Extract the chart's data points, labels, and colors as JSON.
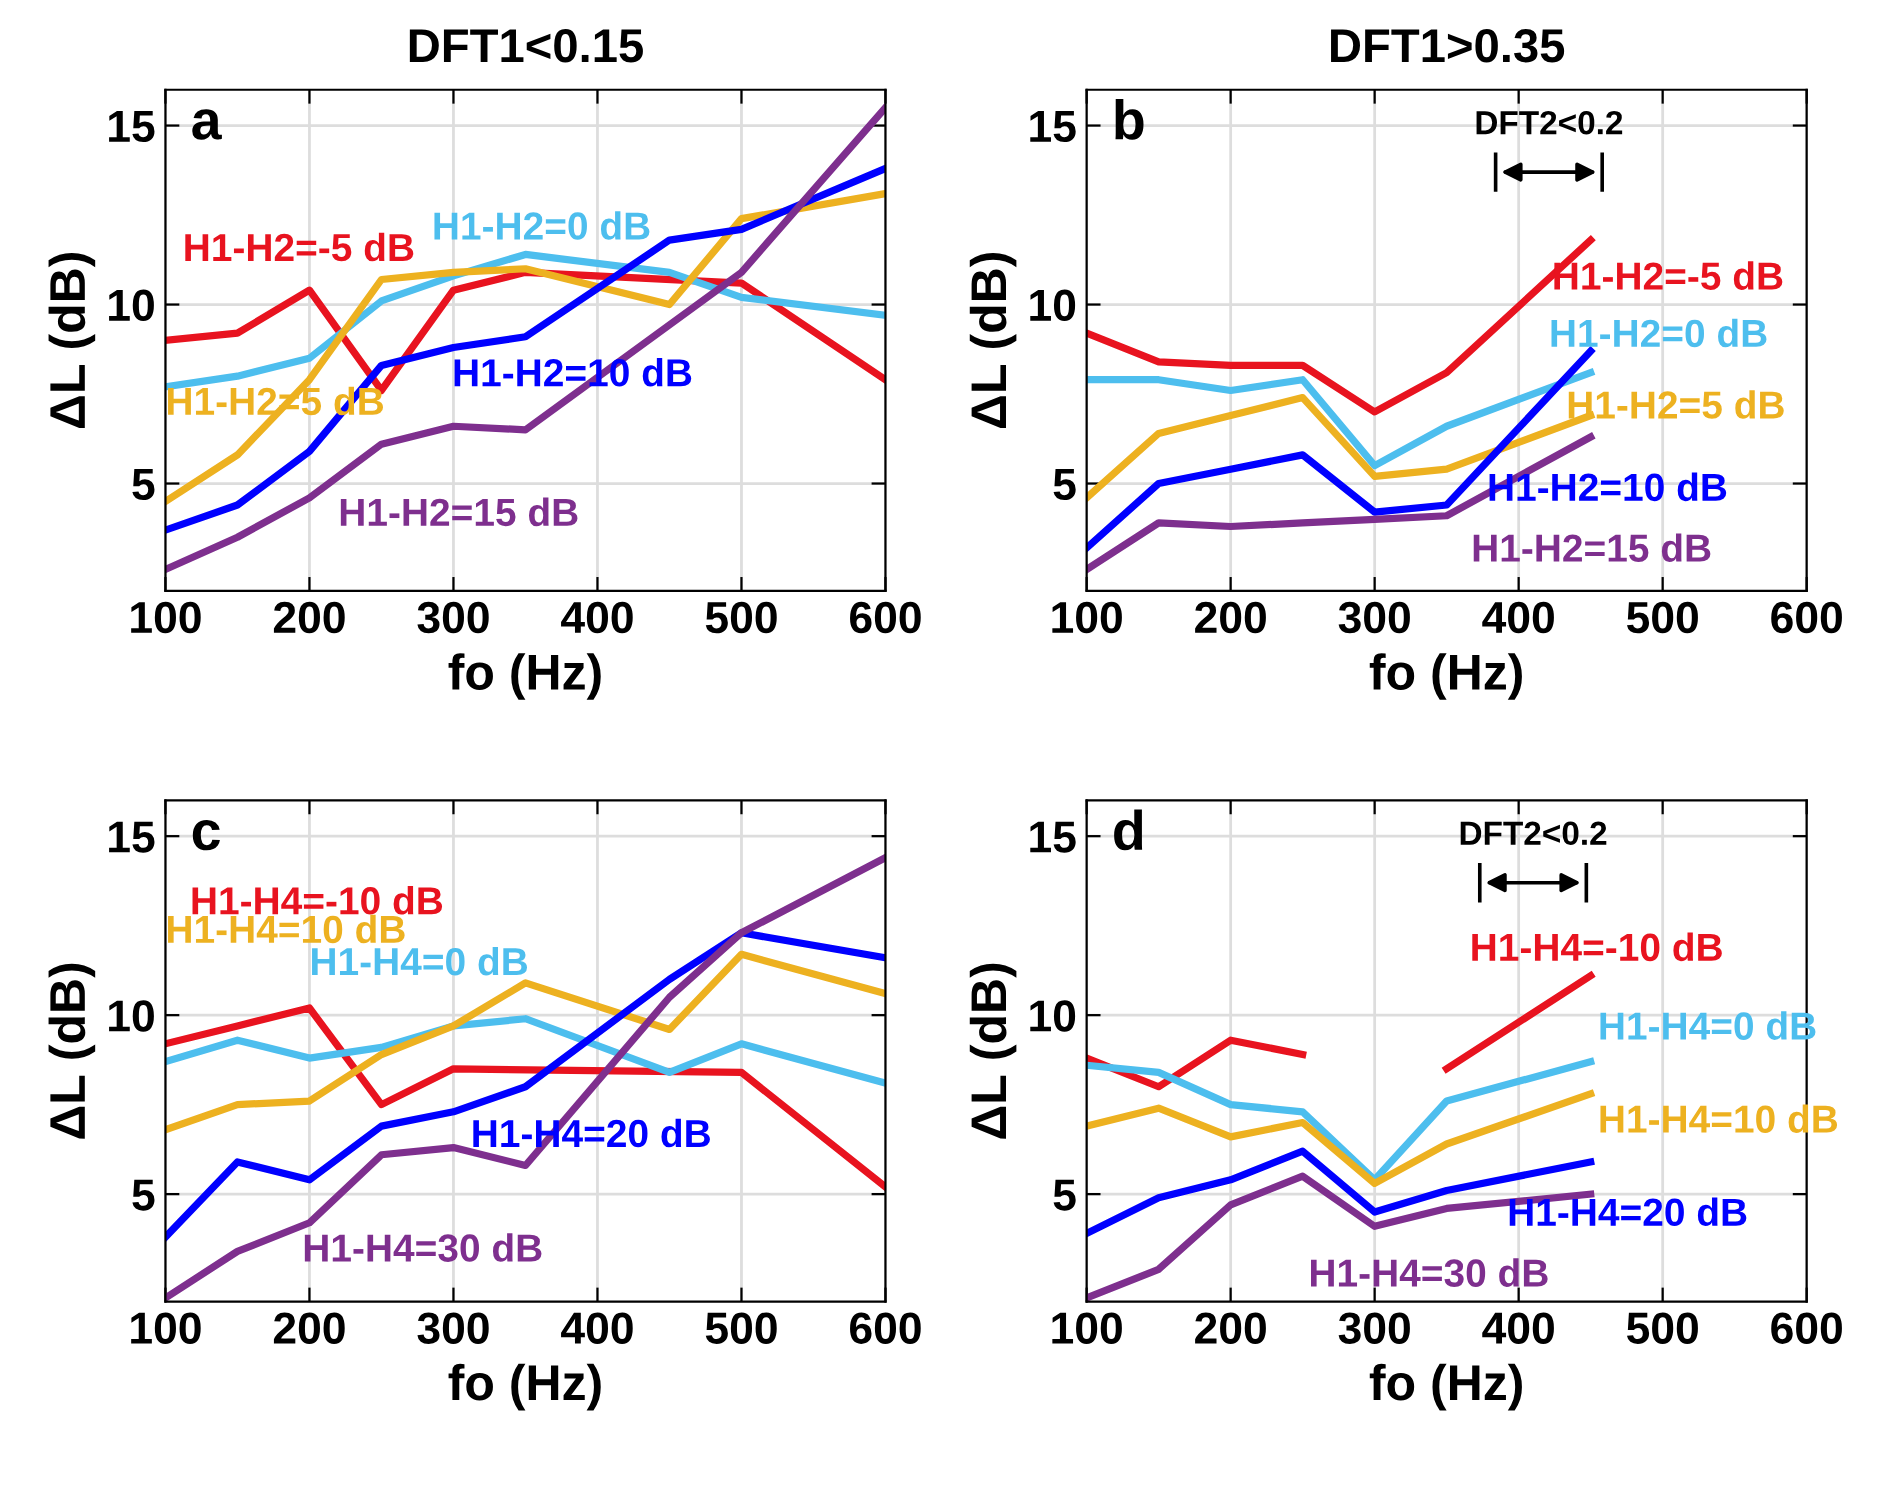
{
  "chart_data": [
    {
      "type": "line",
      "title": "DFT1<0.15",
      "xlabel": "fo (Hz)",
      "ylabel": "ΔL (dB)",
      "xlim": [
        100,
        600
      ],
      "ylim": [
        2,
        16
      ],
      "xticks": [
        100,
        200,
        300,
        400,
        500,
        600
      ],
      "yticks": [
        5,
        10,
        15
      ],
      "grid": true,
      "legend": false,
      "annotations": [
        "a"
      ],
      "series": [
        {
          "name": "H1-H2=-5 dB",
          "color": "#e8131f",
          "x": [
            100,
            150,
            200,
            250,
            300,
            350,
            500,
            600
          ],
          "values": [
            9.0,
            9.2,
            10.4,
            7.6,
            10.4,
            10.9,
            10.6,
            7.9
          ]
        },
        {
          "name": "H1-H2=0 dB",
          "color": "#4dbeee",
          "x": [
            100,
            150,
            200,
            250,
            300,
            350,
            450,
            500,
            600
          ],
          "values": [
            7.7,
            8.0,
            8.5,
            10.1,
            10.8,
            11.4,
            10.9,
            10.2,
            9.7
          ]
        },
        {
          "name": "H1-H2=5 dB",
          "color": "#edb120",
          "x": [
            100,
            150,
            200,
            250,
            300,
            350,
            450,
            500,
            600
          ],
          "values": [
            4.5,
            5.8,
            7.9,
            10.7,
            10.9,
            11.0,
            10.0,
            12.4,
            13.1
          ]
        },
        {
          "name": "H1-H2=10 dB",
          "color": "#0000ff",
          "x": [
            100,
            150,
            200,
            250,
            300,
            350,
            450,
            500,
            600
          ],
          "values": [
            3.7,
            4.4,
            5.9,
            8.3,
            8.8,
            9.1,
            11.8,
            12.1,
            13.8
          ]
        },
        {
          "name": "H1-H2=15 dB",
          "color": "#7e2f8e",
          "x": [
            100,
            150,
            200,
            250,
            300,
            350,
            500,
            600
          ],
          "values": [
            2.6,
            3.5,
            4.6,
            6.1,
            6.6,
            6.5,
            10.9,
            15.5
          ]
        }
      ]
    },
    {
      "type": "line",
      "title": "DFT1>0.35",
      "xlabel": "fo (Hz)",
      "ylabel": "ΔL (dB)",
      "xlim": [
        100,
        600
      ],
      "ylim": [
        2,
        16
      ],
      "xticks": [
        100,
        200,
        300,
        400,
        500,
        600
      ],
      "yticks": [
        5,
        10,
        15
      ],
      "grid": true,
      "legend": false,
      "annotations": [
        "b",
        "DFT2<0.2"
      ],
      "series": [
        {
          "name": "H1-H2=-5 dB",
          "color": "#e8131f",
          "x": [
            100,
            150,
            200,
            250,
            300,
            350,
            450
          ],
          "values": [
            9.2,
            8.4,
            8.3,
            8.3,
            7.0,
            8.1,
            11.8
          ]
        },
        {
          "name": "H1-H2=0 dB",
          "color": "#4dbeee",
          "x": [
            100,
            150,
            200,
            250,
            300,
            350,
            450
          ],
          "values": [
            7.9,
            7.9,
            7.6,
            7.9,
            5.5,
            6.6,
            8.1
          ]
        },
        {
          "name": "H1-H2=5 dB",
          "color": "#edb120",
          "x": [
            100,
            150,
            200,
            250,
            300,
            350,
            450
          ],
          "values": [
            4.6,
            6.4,
            6.9,
            7.4,
            5.2,
            5.4,
            6.9
          ]
        },
        {
          "name": "H1-H2=10 dB",
          "color": "#0000ff",
          "x": [
            100,
            150,
            200,
            250,
            300,
            350,
            450
          ],
          "values": [
            3.2,
            5.0,
            5.4,
            5.8,
            4.2,
            4.4,
            8.7
          ]
        },
        {
          "name": "H1-H2=15 dB",
          "color": "#7e2f8e",
          "x": [
            100,
            150,
            200,
            250,
            300,
            350,
            450
          ],
          "values": [
            2.6,
            3.9,
            3.8,
            3.9,
            4.0,
            4.1,
            6.3
          ]
        }
      ]
    },
    {
      "type": "line",
      "xlabel": "fo (Hz)",
      "ylabel": "ΔL (dB)",
      "xlim": [
        100,
        600
      ],
      "ylim": [
        2,
        16
      ],
      "xticks": [
        100,
        200,
        300,
        400,
        500,
        600
      ],
      "yticks": [
        5,
        10,
        15
      ],
      "grid": true,
      "legend": false,
      "annotations": [
        "c"
      ],
      "series": [
        {
          "name": "H1-H4=-10 dB",
          "color": "#e8131f",
          "x": [
            100,
            150,
            200,
            250,
            300,
            500,
            600
          ],
          "values": [
            9.2,
            9.7,
            10.2,
            7.5,
            8.5,
            8.4,
            5.2
          ]
        },
        {
          "name": "H1-H4=0 dB",
          "color": "#4dbeee",
          "x": [
            100,
            150,
            200,
            250,
            300,
            350,
            450,
            500,
            600
          ],
          "values": [
            8.7,
            9.3,
            8.8,
            9.1,
            9.7,
            9.9,
            8.4,
            9.2,
            8.1
          ]
        },
        {
          "name": "H1-H4=10 dB",
          "color": "#edb120",
          "x": [
            100,
            150,
            200,
            250,
            300,
            350,
            450,
            500,
            600
          ],
          "values": [
            6.8,
            7.5,
            7.6,
            8.9,
            9.7,
            10.9,
            9.6,
            11.7,
            10.6
          ]
        },
        {
          "name": "H1-H4=20 dB",
          "color": "#0000ff",
          "x": [
            100,
            150,
            200,
            250,
            300,
            350,
            450,
            500,
            600
          ],
          "values": [
            3.8,
            5.9,
            5.4,
            6.9,
            7.3,
            8.0,
            11.0,
            12.3,
            11.6
          ]
        },
        {
          "name": "H1-H4=30 dB",
          "color": "#7e2f8e",
          "x": [
            100,
            150,
            200,
            250,
            300,
            350,
            450,
            500,
            600
          ],
          "values": [
            2.1,
            3.4,
            4.2,
            6.1,
            6.3,
            5.8,
            10.5,
            12.3,
            14.4
          ]
        }
      ]
    },
    {
      "type": "line",
      "xlabel": "fo (Hz)",
      "ylabel": "ΔL (dB)",
      "xlim": [
        100,
        600
      ],
      "ylim": [
        2,
        16
      ],
      "xticks": [
        100,
        200,
        300,
        400,
        500,
        600
      ],
      "yticks": [
        5,
        10,
        15
      ],
      "grid": true,
      "legend": false,
      "annotations": [
        "d",
        "DFT2<0.2"
      ],
      "series": [
        {
          "name": "H1-H4=-10 dB",
          "color": "#e8131f",
          "x": [
            100,
            150,
            200,
            250,
            null,
            350,
            450
          ],
          "values": [
            8.8,
            8.0,
            9.3,
            8.9,
            null,
            8.5,
            11.1
          ]
        },
        {
          "name": "H1-H4=0 dB",
          "color": "#4dbeee",
          "x": [
            100,
            150,
            200,
            250,
            300,
            350,
            450
          ],
          "values": [
            8.6,
            8.4,
            7.5,
            7.3,
            5.4,
            7.6,
            8.7
          ]
        },
        {
          "name": "H1-H4=10 dB",
          "color": "#edb120",
          "x": [
            100,
            150,
            200,
            250,
            300,
            350,
            450
          ],
          "values": [
            6.9,
            7.4,
            6.6,
            7.0,
            5.3,
            6.4,
            7.8
          ]
        },
        {
          "name": "H1-H4=20 dB",
          "color": "#0000ff",
          "x": [
            100,
            150,
            200,
            250,
            300,
            350,
            450
          ],
          "values": [
            3.9,
            4.9,
            5.4,
            6.2,
            4.5,
            5.1,
            5.9
          ]
        },
        {
          "name": "H1-H4=30 dB",
          "color": "#7e2f8e",
          "x": [
            100,
            150,
            200,
            250,
            300,
            350,
            450
          ],
          "values": [
            2.1,
            2.9,
            4.7,
            5.5,
            4.1,
            4.6,
            5.0
          ]
        }
      ]
    }
  ]
}
